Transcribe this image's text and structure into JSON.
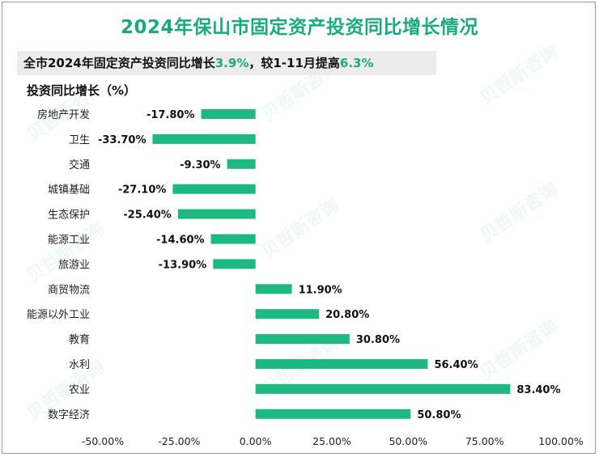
{
  "header": {
    "title": "2024年保山市固定资产投资同比增长情况",
    "summary_prefix": "全市2024年固定资产投资同比增长",
    "summary_value1": "3.9%",
    "summary_mid": "，较1-11月提高",
    "summary_value2": "6.3%"
  },
  "watermark": {
    "text": "贝哲斯咨询"
  },
  "colors": {
    "accent": "#1aab7a",
    "bar": "#1db981"
  },
  "chart_data": {
    "type": "bar",
    "orientation": "horizontal",
    "title": "2024年保山市固定资产投资同比增长情况",
    "ylabel": "投资同比增长（%）",
    "xlim": [
      -50,
      100
    ],
    "xticks": [
      -50,
      -25,
      0,
      25,
      50,
      75,
      100
    ],
    "xtick_labels": [
      "-50.00%",
      "-25.00%",
      "0.00%",
      "25.00%",
      "50.00%",
      "75.00%",
      "100.00%"
    ],
    "categories": [
      "房地产开发",
      "卫生",
      "交通",
      "城镇基础",
      "生态保护",
      "能源工业",
      "旅游业",
      "商贸物流",
      "能源以外工业",
      "教育",
      "水利",
      "农业",
      "数字经济"
    ],
    "values": [
      -17.8,
      -33.7,
      -9.3,
      -27.1,
      -25.4,
      -14.6,
      -13.9,
      11.9,
      20.8,
      30.8,
      56.4,
      83.4,
      50.8
    ],
    "value_labels": [
      "-17.80%",
      "-33.70%",
      "-9.30%",
      "-27.10%",
      "-25.40%",
      "-14.60%",
      "-13.90%",
      "11.90%",
      "20.80%",
      "30.80%",
      "56.40%",
      "83.40%",
      "50.80%"
    ]
  }
}
